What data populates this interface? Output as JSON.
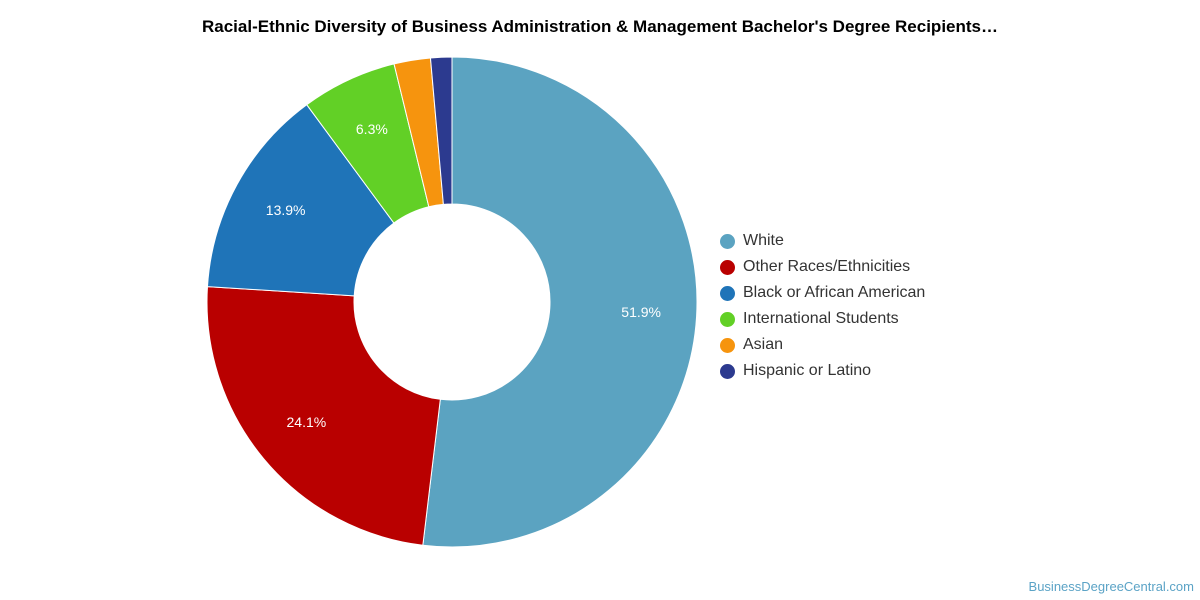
{
  "chart_data": {
    "type": "pie",
    "donut": true,
    "title": "Racial-Ethnic Diversity of Business Administration & Management Bachelor's Degree Recipients…",
    "slices": [
      {
        "label": "White",
        "value": 51.9,
        "data_label": "51.9%",
        "color": "#5ba3c1"
      },
      {
        "label": "Other Races/Ethnicities",
        "value": 24.1,
        "data_label": "24.1%",
        "color": "#b90000"
      },
      {
        "label": "Black or African American",
        "value": 13.9,
        "data_label": "13.9%",
        "color": "#1f74b8"
      },
      {
        "label": "International Students",
        "value": 6.3,
        "data_label": "6.3%",
        "color": "#62d026"
      },
      {
        "label": "Asian",
        "value": 2.4,
        "data_label": "",
        "color": "#f6940e"
      },
      {
        "label": "Hispanic or Latino",
        "value": 1.4,
        "data_label": "",
        "color": "#2c3a8f"
      }
    ],
    "legend_position": "right"
  },
  "credit": "BusinessDegreeCentral.com"
}
